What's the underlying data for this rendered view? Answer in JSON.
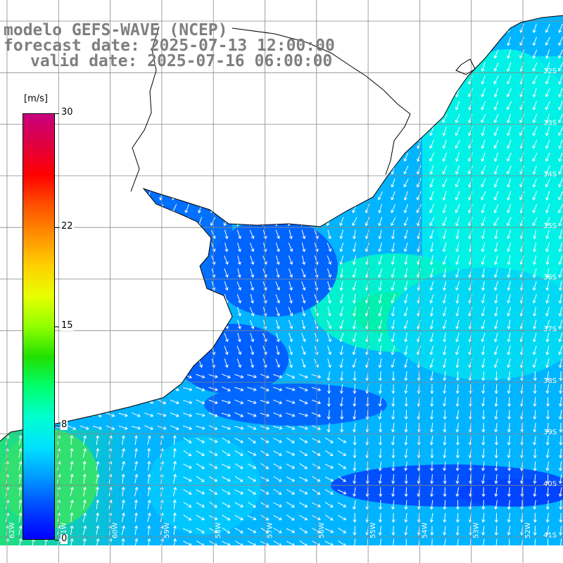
{
  "title": {
    "line1": "modelo GEFS-WAVE (NCEP)",
    "line2": "forecast date: 2025-07-13 12:00:00",
    "line3": "valid date: 2025-07-16 06:00:00"
  },
  "colorbar": {
    "unit": "[m/s]",
    "min": 0,
    "max": 30,
    "ticks": [
      {
        "value": 30,
        "label": "30"
      },
      {
        "value": 22,
        "label": "22"
      },
      {
        "value": 15,
        "label": "15"
      },
      {
        "value": 8,
        "label": "8"
      },
      {
        "value": 0,
        "label": "0"
      }
    ],
    "colors": [
      "#0000ff",
      "#0044ff",
      "#0098ff",
      "#00e0ff",
      "#00ffd0",
      "#00ff70",
      "#20e000",
      "#90ff00",
      "#e8ff00",
      "#ffd000",
      "#ff9000",
      "#ff5000",
      "#ff0000",
      "#e00040",
      "#c8007e"
    ]
  },
  "latitude_labels": [
    "32S",
    "33S",
    "34S",
    "35S",
    "36S",
    "37S",
    "38S",
    "39S",
    "40S",
    "41S"
  ],
  "longitude_labels": [
    "62W",
    "61W",
    "60W",
    "59W",
    "58W",
    "57W",
    "56W",
    "55W",
    "54W",
    "53W",
    "52W"
  ],
  "map": {
    "variable": "wind speed",
    "land_color": "#ffffff",
    "coast_color": "#000000",
    "grid_color": "#888888",
    "arrow_color": "#ffffff"
  }
}
